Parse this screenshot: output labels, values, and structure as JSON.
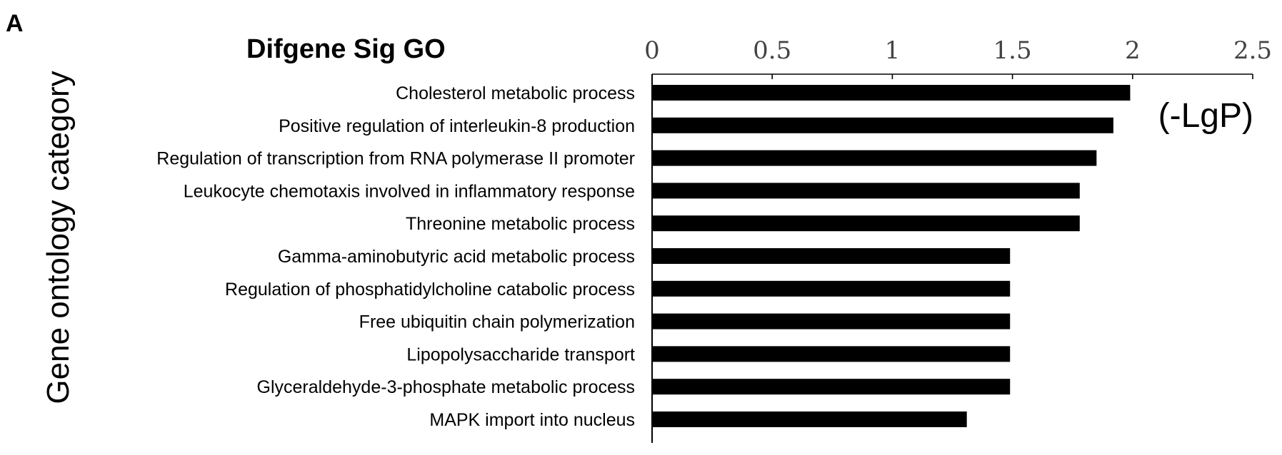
{
  "figure": {
    "panel_label": "A"
  },
  "chart_data": {
    "type": "bar",
    "orientation": "horizontal",
    "title": "Difgene Sig GO",
    "ylabel": "Gene ontology category",
    "xlabel": "(-LgP)",
    "xlim": [
      0,
      2.5
    ],
    "x_ticks": [
      0,
      0.5,
      1,
      1.5,
      2,
      2.5
    ],
    "x_tick_labels": [
      "0",
      "0.5",
      "1",
      "1.5",
      "2",
      "2.5"
    ],
    "axis_position": "top",
    "grid": false,
    "legend": "none",
    "bar_color": "#000000",
    "categories": [
      "Cholesterol metabolic process",
      "Positive regulation of interleukin-8 production",
      "Regulation of transcription from RNA polymerase II promoter",
      "Leukocyte chemotaxis involved in inflammatory response",
      "Threonine metabolic process",
      "Gamma-aminobutyric acid metabolic process",
      "Regulation of phosphatidylcholine catabolic process",
      "Free ubiquitin chain polymerization",
      "Lipopolysaccharide transport",
      "Glyceraldehyde-3-phosphate metabolic process",
      "MAPK import into nucleus"
    ],
    "values": [
      1.99,
      1.92,
      1.85,
      1.78,
      1.78,
      1.49,
      1.49,
      1.49,
      1.49,
      1.49,
      1.31
    ]
  }
}
